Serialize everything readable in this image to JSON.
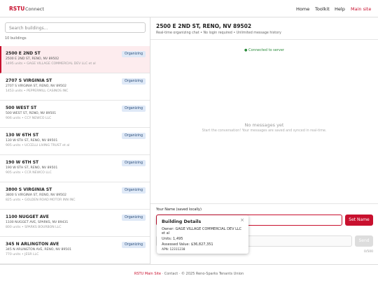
{
  "header": {
    "brand": "RSTU",
    "product": "Connect",
    "nav": [
      "Home",
      "Toolkit",
      "Help",
      "Main site"
    ]
  },
  "sidebar": {
    "search_placeholder": "Search buildings...",
    "count": "10 buildings",
    "items": [
      {
        "name": "2500 E 2ND ST",
        "address": "2500 E 2ND ST, RENO, NV 89502",
        "meta": "1495 units • GAGE VILLAGE COMMERCIAL DEV LLC et al",
        "badge": "Organizing"
      },
      {
        "name": "2707 S VIRGINIA ST",
        "address": "2707 S VIRGINIA ST, RENO, NV 89502",
        "meta": "1453 units • PEPPERMILL CASINOS INC",
        "badge": "Organizing"
      },
      {
        "name": "500 WEST ST",
        "address": "500 WEST ST, RENO, NV 89501",
        "meta": "906 units • CCY NEWCO LLC",
        "badge": "Organizing"
      },
      {
        "name": "130 W 6TH ST",
        "address": "130 W 6TH ST, RENO, NV 89501",
        "meta": "905 units • UCCELLI LIVING TRUST et al",
        "badge": "Organizing"
      },
      {
        "name": "190 W 6TH ST",
        "address": "190 W 6TH ST, RENO, NV 89501",
        "meta": "905 units • CCR NEWCO LLC",
        "badge": "Organizing"
      },
      {
        "name": "3800 S VIRGINIA ST",
        "address": "3800 S VIRGINIA ST, RENO, NV 89502",
        "meta": "825 units • GOLDEN ROAD MOTOR INN INC",
        "badge": "Organizing"
      },
      {
        "name": "1100 NUGGET AVE",
        "address": "1100 NUGGET AVE, SPARKS, NV 89431",
        "meta": "800 units • SPARKS BOURBON LLC",
        "badge": "Organizing"
      },
      {
        "name": "345 N ARLINGTON AVE",
        "address": "345 N ARLINGTON AVE, RENO, NV 89501",
        "meta": "770 units • JESR LLC",
        "badge": "Organizing"
      }
    ]
  },
  "chat": {
    "title": "2500 E 2ND ST, RENO, NV 89502",
    "subtitle": "Real-time organizing chat • No login required • Unlimited message history",
    "status": "Connected to server",
    "empty_title": "No messages yet",
    "empty_text": "Start the conversation! Your messages are saved and synced in real-time.",
    "name_label": "Your Name (saved locally)",
    "set_name": "Set Name",
    "send": "Send",
    "counter": "0/500"
  },
  "popup": {
    "title": "Building Details",
    "close": "×",
    "lines": [
      "Owner: GAGE VILLAGE COMMERCIAL DEV LLC et al",
      "Units: 1,495",
      "Assessed Value: $36,827,351",
      "APN: 12311238"
    ]
  },
  "footer": {
    "links": [
      "RSTU Main Site",
      "Contact"
    ],
    "separator": "·",
    "copyright": "© 2025 Reno-Sparks Tenants Union"
  }
}
